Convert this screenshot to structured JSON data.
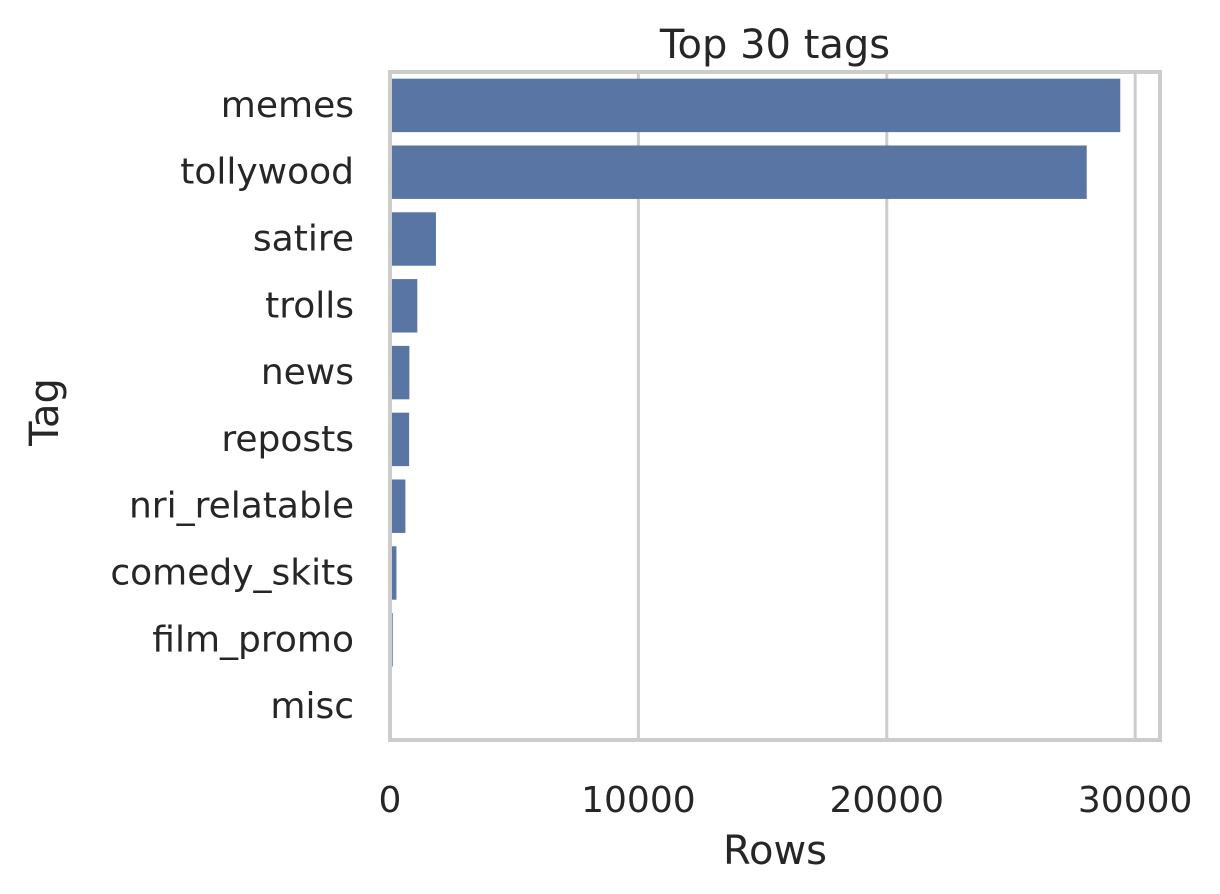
{
  "chart_data": {
    "type": "bar",
    "orientation": "horizontal",
    "title": "Top 30 tags",
    "xlabel": "Rows",
    "ylabel": "Tag",
    "categories": [
      "memes",
      "tollywood",
      "satire",
      "trolls",
      "news",
      "reposts",
      "nri_relatable",
      "comedy_skits",
      "film_promo",
      "misc"
    ],
    "values": [
      29400,
      28050,
      1850,
      1100,
      780,
      770,
      620,
      260,
      110,
      20
    ],
    "xlim": [
      0,
      31000
    ],
    "xticks": [
      0,
      10000,
      20000,
      30000
    ],
    "grid": true,
    "legend": "none",
    "bar_color": "#5875a4",
    "grid_color": "#cccccc",
    "frame_color": "#cccccc",
    "text_color": "#262626"
  }
}
